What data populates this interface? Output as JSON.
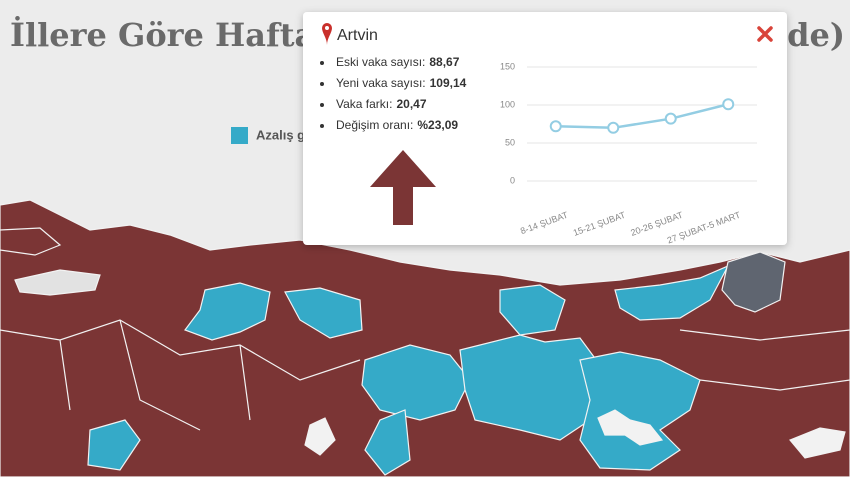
{
  "header": {
    "title_left": "İllere Göre Hafta",
    "title_right": "de)"
  },
  "legend": {
    "label": "Azalış g"
  },
  "popup": {
    "title": "Artvin",
    "items": [
      {
        "label": "Eski vaka sayısı:",
        "value": "88,67"
      },
      {
        "label": "Yeni vaka sayısı:",
        "value": "109,14"
      },
      {
        "label": "Vaka farkı:",
        "value": "20,47"
      },
      {
        "label": "Değişim oranı:",
        "value": "%23,09"
      }
    ]
  },
  "chart_data": {
    "type": "line",
    "categories": [
      "8-14 ŞUBAT",
      "15-21 ŞUBAT",
      "20-26 ŞUBAT",
      "27 ŞUBAT-5 MART"
    ],
    "values": [
      72,
      70,
      82,
      101
    ],
    "color": "#93cde3",
    "ylim": [
      0,
      150
    ],
    "yticks": [
      0,
      50,
      100,
      150
    ],
    "grid": true
  }
}
